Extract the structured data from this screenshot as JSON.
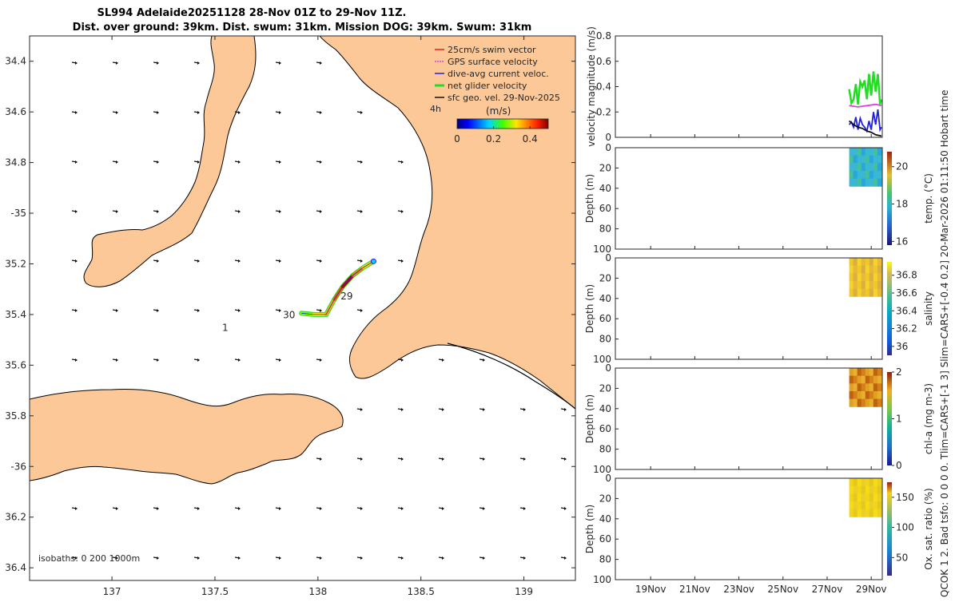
{
  "header": {
    "title_line1": "SL994 Adelaide20251128 28-Nov 01Z to 29-Nov 11Z.",
    "title_line2": "Dist. over ground: 39km. Dist. swum: 31km. Mission DOG: 39km. Swum: 31km"
  },
  "side_text": "QCOK 1  2. Bad tsfo: 0  0  0  0. Tlim=CARS+[-1 3] Slim=CARS+[-0.4 0.2] 20-Mar-2026 01:11:50 Hobart time",
  "colors": {
    "land": "#fcc898",
    "water": "#ffffff",
    "coast": "#000000",
    "swim": "#d62728",
    "gps": "#e040e0",
    "dac": "#2222dd",
    "net": "#22dd22",
    "geo": "#111111"
  },
  "chart_data": [
    {
      "id": "map",
      "type": "map",
      "xlim": [
        136.6,
        139.25
      ],
      "ylim": [
        -36.45,
        -34.3
      ],
      "xticks": [
        137,
        137.5,
        138,
        138.5,
        139
      ],
      "xtick_labels": [
        "137",
        "137.5",
        "138",
        "138.5",
        "139"
      ],
      "yticks": [
        -34.4,
        -34.6,
        -34.8,
        -35,
        -35.2,
        -35.4,
        -35.6,
        -35.8,
        -36,
        -36.2,
        -36.4
      ],
      "ytick_labels": [
        "34.4",
        "34.6",
        "34.8",
        "-35",
        "35.2",
        "35.4",
        "35.6",
        "35.8",
        "-36",
        "36.2",
        "36.4"
      ],
      "legend": {
        "placement": "top-right",
        "entries": [
          "25cm/s swim vector",
          "GPS surface velocity",
          "dive-avg current veloc.",
          "net glider velocity",
          "sfc geo. vel. 29-Nov-2025"
        ],
        "time_label": "4h"
      },
      "colorbar": {
        "label": "(m/s)",
        "ticks": [
          0,
          0.2,
          0.4
        ],
        "tick_labels": [
          "0",
          "0.2",
          "0.4"
        ],
        "range": [
          0,
          0.5
        ]
      },
      "track": [
        [
          137.92,
          -35.395
        ],
        [
          137.98,
          -35.4
        ],
        [
          138.04,
          -35.4
        ],
        [
          138.08,
          -35.34
        ],
        [
          138.12,
          -35.29
        ],
        [
          138.17,
          -35.245
        ],
        [
          138.22,
          -35.215
        ],
        [
          138.27,
          -35.19
        ]
      ],
      "annotations": [
        {
          "text": "29",
          "lon": 138.14,
          "lat": -35.34
        },
        {
          "text": "30",
          "lon": 137.86,
          "lat": -35.415
        },
        {
          "text": "1",
          "lon": 137.55,
          "lat": -35.465
        }
      ],
      "isobaths_text": "isobaths: 0   200  1000m"
    },
    {
      "id": "velocity",
      "type": "line",
      "ylabel": "velocity magnitude (m/s)",
      "ylim": [
        0,
        0.8
      ],
      "yticks": [
        0,
        0.2,
        0.4,
        0.6,
        0.8
      ],
      "ytick_labels": [
        "0",
        "0.2",
        "0.4",
        "0.6",
        "0.8"
      ],
      "series": [
        {
          "color": "#22dd22",
          "x": [
            28.0,
            28.1,
            28.2,
            28.3,
            28.4,
            28.5,
            28.6,
            28.7,
            28.8,
            28.9,
            29.0,
            29.1,
            29.2,
            29.3,
            29.4,
            29.46
          ],
          "y": [
            0.38,
            0.27,
            0.3,
            0.42,
            0.26,
            0.44,
            0.4,
            0.45,
            0.3,
            0.5,
            0.33,
            0.52,
            0.36,
            0.5,
            0.26,
            0.3
          ]
        },
        {
          "color": "#2222dd",
          "x": [
            28.0,
            28.1,
            28.2,
            28.3,
            28.4,
            28.5,
            28.6,
            28.7,
            28.8,
            28.9,
            29.0,
            29.1,
            29.2,
            29.3,
            29.4,
            29.46
          ],
          "y": [
            0.1,
            0.12,
            0.08,
            0.16,
            0.06,
            0.15,
            0.1,
            0.08,
            0.05,
            0.13,
            0.06,
            0.2,
            0.1,
            0.22,
            0.06,
            0.08
          ]
        },
        {
          "color": "#111111",
          "x": [
            28.0,
            28.2,
            28.4,
            28.6,
            28.8,
            29.0,
            29.2,
            29.46
          ],
          "y": [
            0.13,
            0.1,
            0.08,
            0.07,
            0.05,
            0.04,
            0.02,
            0.01
          ]
        },
        {
          "color": "#e040e0",
          "x": [
            28.0,
            28.4,
            28.8,
            29.2,
            29.46
          ],
          "y": [
            0.25,
            0.24,
            0.25,
            0.26,
            0.25
          ]
        }
      ]
    },
    {
      "id": "temperature",
      "type": "heatmap",
      "ylabel": "Depth (m)",
      "cbar_label": "temp. (°C)",
      "ylim": [
        0,
        100
      ],
      "yticks": [
        0,
        20,
        40,
        60,
        80,
        100
      ],
      "ytick_labels": [
        "0",
        "20",
        "40",
        "60",
        "80",
        "100"
      ],
      "clim": [
        15.8,
        20.8
      ],
      "cbar_ticks": [
        16,
        18,
        20
      ],
      "cbar_tick_labels": [
        "16",
        "18",
        "20"
      ],
      "x_range": [
        28.0,
        29.46
      ],
      "depth_range": [
        0,
        38
      ],
      "value_range": [
        17.5,
        18.4
      ]
    },
    {
      "id": "salinity",
      "type": "heatmap",
      "ylabel": "Depth (m)",
      "cbar_label": "salinity",
      "ylim": [
        0,
        100
      ],
      "yticks": [
        0,
        20,
        40,
        60,
        80,
        100
      ],
      "ytick_labels": [
        "0",
        "20",
        "40",
        "60",
        "80",
        "100"
      ],
      "clim": [
        35.9,
        36.95
      ],
      "cbar_ticks": [
        36,
        36.2,
        36.4,
        36.6,
        36.8
      ],
      "cbar_tick_labels": [
        "36",
        "36.2",
        "36.4",
        "36.6",
        "36.8"
      ],
      "x_range": [
        28.0,
        29.46
      ],
      "depth_range": [
        0,
        38
      ],
      "value_range": [
        36.6,
        36.8
      ]
    },
    {
      "id": "chla",
      "type": "heatmap",
      "ylabel": "Depth (m)",
      "cbar_label": "chl-a (mg m-3)",
      "ylim": [
        0,
        100
      ],
      "yticks": [
        0,
        20,
        40,
        60,
        80,
        100
      ],
      "ytick_labels": [
        "0",
        "20",
        "40",
        "60",
        "80",
        "100"
      ],
      "clim": [
        0,
        2
      ],
      "cbar_ticks": [
        0,
        1,
        2
      ],
      "cbar_tick_labels": [
        "0",
        "1",
        "2"
      ],
      "x_range": [
        28.0,
        29.46
      ],
      "depth_range": [
        0,
        38
      ],
      "value_range": [
        1.3,
        1.95
      ]
    },
    {
      "id": "oxygen",
      "type": "heatmap",
      "ylabel": "Depth (m)",
      "cbar_label": "Ox. sat. ratio (%)",
      "ylim": [
        0,
        100
      ],
      "yticks": [
        0,
        20,
        40,
        60,
        80,
        100
      ],
      "ytick_labels": [
        "0",
        "20",
        "40",
        "60",
        "80",
        "100"
      ],
      "clim": [
        20,
        175
      ],
      "cbar_ticks": [
        50,
        100,
        150
      ],
      "cbar_tick_labels": [
        "50",
        "100",
        "150"
      ],
      "x_range": [
        28.0,
        29.46
      ],
      "depth_range": [
        0,
        38
      ],
      "value_range": [
        142,
        152
      ]
    }
  ],
  "time_axis": {
    "xlim": [
      17.4,
      29.5
    ],
    "ticks": [
      19,
      21,
      23,
      25,
      27,
      29
    ],
    "tick_labels": [
      "19Nov",
      "21Nov",
      "23Nov",
      "25Nov",
      "27Nov",
      "29Nov"
    ]
  }
}
